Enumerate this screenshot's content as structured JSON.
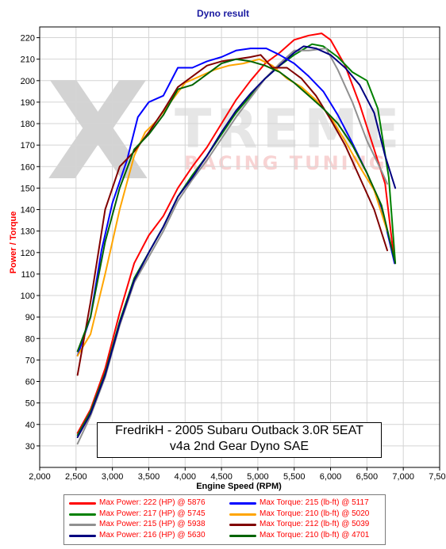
{
  "chart_data": {
    "type": "line",
    "title": "Dyno result",
    "xlabel": "Engine Speed (RPM)",
    "ylabel": "Power / Torque",
    "xlim": [
      2000,
      7500
    ],
    "ylim": [
      20,
      225
    ],
    "x_ticks": [
      "2,000",
      "2,500",
      "3,000",
      "3,500",
      "4,000",
      "4,500",
      "5,000",
      "5,500",
      "6,000",
      "6,500",
      "7,000",
      "7,500"
    ],
    "y_ticks": [
      "30",
      "40",
      "50",
      "60",
      "70",
      "80",
      "90",
      "100",
      "110",
      "120",
      "130",
      "140",
      "150",
      "160",
      "170",
      "180",
      "190",
      "200",
      "210",
      "220"
    ],
    "grid": true,
    "legend_position": "bottom",
    "annotation_lines": [
      "FredrikH - 2005 Subaru Outback 3.0R 5EAT",
      "v4a 2nd Gear Dyno SAE"
    ],
    "watermark": {
      "letter": "X",
      "word": "TREME",
      "tagline": "RACING TUNING"
    },
    "series": [
      {
        "label": "Max Power: 222 (HP) @ 5876",
        "color": "#ff0000",
        "kind": "power",
        "points": [
          [
            2520,
            36
          ],
          [
            2700,
            47
          ],
          [
            2900,
            66
          ],
          [
            3100,
            92
          ],
          [
            3300,
            115
          ],
          [
            3500,
            128
          ],
          [
            3700,
            137
          ],
          [
            3900,
            150
          ],
          [
            4100,
            160
          ],
          [
            4300,
            169
          ],
          [
            4500,
            180
          ],
          [
            4700,
            191
          ],
          [
            4900,
            200
          ],
          [
            5100,
            208
          ],
          [
            5300,
            213
          ],
          [
            5500,
            219
          ],
          [
            5700,
            221
          ],
          [
            5876,
            222
          ],
          [
            6000,
            219
          ],
          [
            6200,
            207
          ],
          [
            6400,
            189
          ],
          [
            6600,
            168
          ],
          [
            6750,
            152
          ],
          [
            6880,
            115
          ]
        ]
      },
      {
        "label": "Max Power: 217 (HP) @ 5745",
        "color": "#008000",
        "kind": "power",
        "points": [
          [
            2520,
            35
          ],
          [
            2700,
            46
          ],
          [
            2900,
            64
          ],
          [
            3100,
            88
          ],
          [
            3300,
            108
          ],
          [
            3500,
            120
          ],
          [
            3700,
            132
          ],
          [
            3900,
            146
          ],
          [
            4100,
            156
          ],
          [
            4300,
            165
          ],
          [
            4500,
            175
          ],
          [
            4700,
            185
          ],
          [
            4900,
            193
          ],
          [
            5100,
            201
          ],
          [
            5300,
            207
          ],
          [
            5500,
            212
          ],
          [
            5745,
            217
          ],
          [
            5900,
            216
          ],
          [
            6100,
            211
          ],
          [
            6300,
            204
          ],
          [
            6500,
            200
          ],
          [
            6650,
            187
          ],
          [
            6800,
            155
          ],
          [
            6890,
            115
          ]
        ]
      },
      {
        "label": "Max Power: 215 (HP) @ 5938",
        "color": "#909090",
        "kind": "power",
        "points": [
          [
            2520,
            31
          ],
          [
            2700,
            44
          ],
          [
            2900,
            62
          ],
          [
            3100,
            86
          ],
          [
            3300,
            106
          ],
          [
            3500,
            118
          ],
          [
            3700,
            130
          ],
          [
            3900,
            144
          ],
          [
            4100,
            154
          ],
          [
            4300,
            163
          ],
          [
            4500,
            173
          ],
          [
            4700,
            183
          ],
          [
            4900,
            192
          ],
          [
            5100,
            201
          ],
          [
            5300,
            208
          ],
          [
            5500,
            214
          ],
          [
            5700,
            214
          ],
          [
            5938,
            215
          ],
          [
            6100,
            205
          ],
          [
            6300,
            190
          ],
          [
            6500,
            172
          ],
          [
            6700,
            158
          ],
          [
            6780,
            152
          ]
        ]
      },
      {
        "label": "Max Power: 216 (HP) @ 5630",
        "color": "#000080",
        "kind": "power",
        "points": [
          [
            2520,
            34
          ],
          [
            2700,
            45
          ],
          [
            2900,
            63
          ],
          [
            3100,
            87
          ],
          [
            3300,
            107
          ],
          [
            3500,
            120
          ],
          [
            3700,
            132
          ],
          [
            3900,
            146
          ],
          [
            4100,
            155
          ],
          [
            4300,
            165
          ],
          [
            4500,
            176
          ],
          [
            4700,
            186
          ],
          [
            4900,
            194
          ],
          [
            5100,
            201
          ],
          [
            5300,
            207
          ],
          [
            5500,
            213
          ],
          [
            5630,
            216
          ],
          [
            5800,
            215
          ],
          [
            6000,
            212
          ],
          [
            6200,
            206
          ],
          [
            6400,
            198
          ],
          [
            6600,
            185
          ],
          [
            6750,
            165
          ],
          [
            6890,
            150
          ]
        ]
      },
      {
        "label": "Max Torque: 215 (lb-ft) @ 5117",
        "color": "#0000ff",
        "kind": "torque",
        "points": [
          [
            2520,
            72
          ],
          [
            2700,
            90
          ],
          [
            2850,
            121
          ],
          [
            3000,
            143
          ],
          [
            3200,
            163
          ],
          [
            3350,
            183
          ],
          [
            3500,
            190
          ],
          [
            3700,
            193
          ],
          [
            3900,
            206
          ],
          [
            4100,
            206
          ],
          [
            4300,
            209
          ],
          [
            4500,
            211
          ],
          [
            4700,
            214
          ],
          [
            4900,
            215
          ],
          [
            5117,
            215
          ],
          [
            5300,
            212
          ],
          [
            5500,
            208
          ],
          [
            5700,
            202
          ],
          [
            5900,
            195
          ],
          [
            6100,
            184
          ],
          [
            6300,
            171
          ],
          [
            6500,
            157
          ],
          [
            6700,
            141
          ],
          [
            6880,
            115
          ]
        ]
      },
      {
        "label": "Max Torque: 210 (lb-ft) @ 5020",
        "color": "#ffa500",
        "kind": "torque",
        "points": [
          [
            2520,
            72
          ],
          [
            2700,
            82
          ],
          [
            2900,
            110
          ],
          [
            3100,
            140
          ],
          [
            3300,
            165
          ],
          [
            3450,
            176
          ],
          [
            3600,
            181
          ],
          [
            3800,
            190
          ],
          [
            4000,
            199
          ],
          [
            4200,
            202
          ],
          [
            4400,
            205
          ],
          [
            4600,
            207
          ],
          [
            4800,
            208
          ],
          [
            5020,
            210
          ],
          [
            5200,
            207
          ],
          [
            5400,
            201
          ],
          [
            5600,
            197
          ],
          [
            5800,
            191
          ],
          [
            6000,
            183
          ],
          [
            6200,
            172
          ],
          [
            6400,
            160
          ],
          [
            6600,
            149
          ],
          [
            6780,
            130
          ]
        ]
      },
      {
        "label": "Max Torque: 212 (lb-ft) @ 5039",
        "color": "#800000",
        "kind": "torque",
        "points": [
          [
            2520,
            63
          ],
          [
            2700,
            97
          ],
          [
            2900,
            140
          ],
          [
            3100,
            160
          ],
          [
            3300,
            167
          ],
          [
            3500,
            176
          ],
          [
            3700,
            186
          ],
          [
            3900,
            197
          ],
          [
            4100,
            202
          ],
          [
            4300,
            207
          ],
          [
            4500,
            209
          ],
          [
            4700,
            210
          ],
          [
            4900,
            211
          ],
          [
            5039,
            212
          ],
          [
            5200,
            206
          ],
          [
            5400,
            206
          ],
          [
            5600,
            201
          ],
          [
            5800,
            193
          ],
          [
            6000,
            182
          ],
          [
            6200,
            170
          ],
          [
            6400,
            155
          ],
          [
            6600,
            140
          ],
          [
            6780,
            121
          ]
        ]
      },
      {
        "label": "Max Torque: 210 (lb-ft) @ 4701",
        "color": "#006400",
        "kind": "torque",
        "points": [
          [
            2520,
            74
          ],
          [
            2700,
            90
          ],
          [
            2900,
            125
          ],
          [
            3100,
            150
          ],
          [
            3300,
            168
          ],
          [
            3500,
            175
          ],
          [
            3700,
            184
          ],
          [
            3900,
            196
          ],
          [
            4100,
            198
          ],
          [
            4300,
            203
          ],
          [
            4500,
            208
          ],
          [
            4701,
            210
          ],
          [
            4900,
            209
          ],
          [
            5100,
            207
          ],
          [
            5300,
            204
          ],
          [
            5500,
            199
          ],
          [
            5700,
            193
          ],
          [
            5900,
            187
          ],
          [
            6100,
            180
          ],
          [
            6300,
            170
          ],
          [
            6500,
            157
          ],
          [
            6700,
            142
          ],
          [
            6890,
            115
          ]
        ]
      }
    ]
  }
}
